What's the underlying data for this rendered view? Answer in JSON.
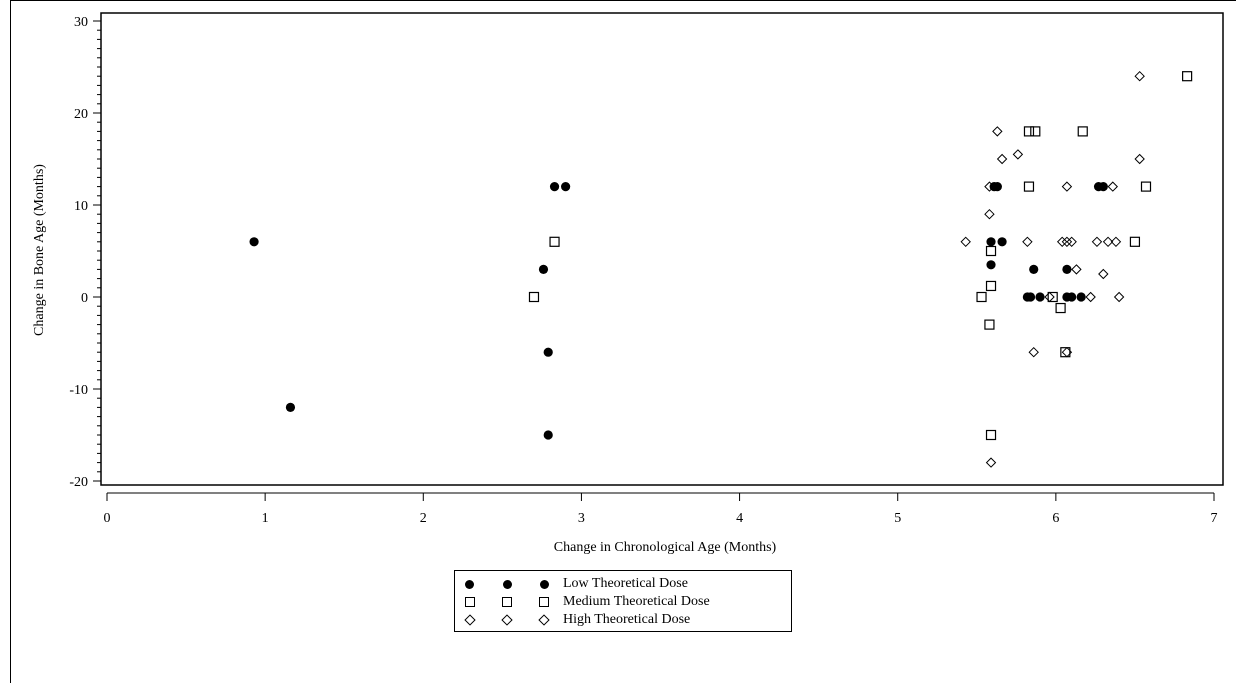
{
  "chart_data": {
    "type": "scatter",
    "xlabel": "Change in Chronological Age (Months)",
    "ylabel": "Change in Bone Age (Months)",
    "xlim": [
      0,
      7
    ],
    "ylim": [
      -20,
      30
    ],
    "x_ticks": [
      0,
      1,
      2,
      3,
      4,
      5,
      6,
      7
    ],
    "y_ticks": [
      -20,
      -10,
      0,
      10,
      20,
      30
    ],
    "grid": false,
    "legend_position": "bottom-center",
    "series": [
      {
        "name": "Low Theoretical Dose",
        "marker": "filled-circle",
        "x": [
          0.93,
          1.16,
          2.76,
          2.79,
          2.79,
          2.83,
          2.9,
          5.59,
          5.59,
          5.61,
          5.63,
          5.66,
          5.82,
          5.84,
          5.86,
          5.9,
          6.07,
          6.07,
          6.1,
          6.16,
          6.27,
          6.3
        ],
        "y": [
          6,
          -12,
          3,
          -6,
          -15,
          12,
          12,
          3.5,
          6,
          12,
          12,
          6,
          0,
          0,
          3,
          0,
          3,
          0,
          0,
          0,
          12,
          12
        ]
      },
      {
        "name": "Medium Theoretical Dose",
        "marker": "open-square",
        "x": [
          2.7,
          2.83,
          5.53,
          5.58,
          5.59,
          5.59,
          5.59,
          5.83,
          5.83,
          5.87,
          5.98,
          6.03,
          6.06,
          6.17,
          6.5,
          6.57,
          6.83
        ],
        "y": [
          0,
          6,
          0,
          -3,
          1.2,
          5,
          -15,
          12,
          18,
          18,
          0,
          -1.2,
          -6,
          18,
          6,
          12,
          24
        ]
      },
      {
        "name": "High Theoretical Dose",
        "marker": "open-diamond",
        "x": [
          5.43,
          5.58,
          5.58,
          5.59,
          5.63,
          5.66,
          5.76,
          5.82,
          5.86,
          5.96,
          6.04,
          6.07,
          6.07,
          6.07,
          6.1,
          6.13,
          6.22,
          6.26,
          6.3,
          6.33,
          6.36,
          6.38,
          6.4,
          6.53,
          6.53
        ],
        "y": [
          6,
          12,
          9,
          -18,
          18,
          15,
          15.5,
          6,
          -6,
          0,
          6,
          12,
          -6,
          6,
          6,
          3,
          0,
          6,
          2.5,
          6,
          12,
          6,
          0,
          24,
          15
        ]
      }
    ]
  }
}
